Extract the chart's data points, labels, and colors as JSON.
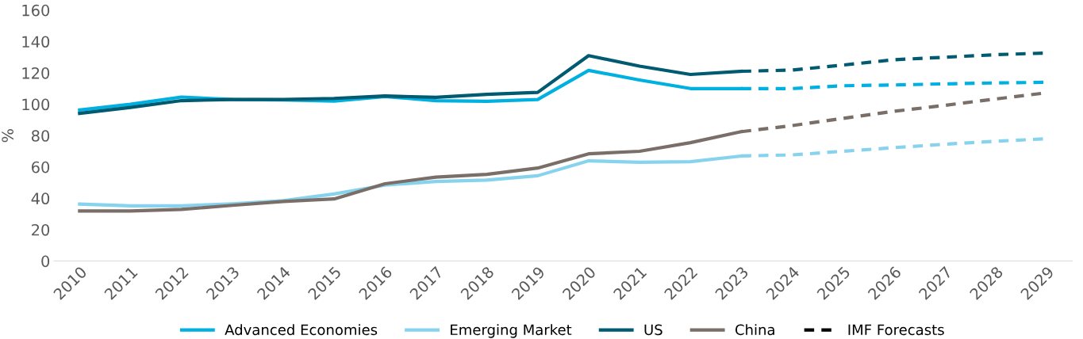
{
  "chart_data": {
    "type": "line",
    "ylabel": "%",
    "categories": [
      "2010",
      "2011",
      "2012",
      "2013",
      "2014",
      "2015",
      "2016",
      "2017",
      "2018",
      "2019",
      "2020",
      "2021",
      "2022",
      "2023",
      "2024",
      "2025",
      "2026",
      "2027",
      "2028",
      "2029"
    ],
    "ylim": [
      0,
      160
    ],
    "yticks": [
      0,
      20,
      40,
      60,
      80,
      100,
      120,
      140,
      160
    ],
    "legend": "bottom",
    "grid": false,
    "marker": "none",
    "series": [
      {
        "name": "Advanced Economies",
        "color": "#00b0e0",
        "line_style": "solid",
        "values": [
          96.3,
          100,
          104.6,
          103,
          102.8,
          102,
          104.9,
          102.3,
          101.9,
          103,
          121.6,
          115.5,
          110,
          110,
          null,
          null,
          null,
          null,
          null,
          null
        ]
      },
      {
        "name": "Emerging Market",
        "color": "#87d3ee",
        "line_style": "solid",
        "values": [
          36.3,
          35.2,
          35.2,
          36.5,
          38.5,
          42.8,
          48.4,
          50.7,
          51.6,
          54.4,
          63.9,
          63,
          63.4,
          67,
          null,
          null,
          null,
          null,
          null,
          null
        ]
      },
      {
        "name": "US",
        "color": "#005a70",
        "line_style": "solid",
        "values": [
          94.2,
          98,
          102.3,
          103,
          103,
          103.7,
          105.3,
          104.4,
          106.3,
          107.6,
          131,
          124.3,
          119,
          121,
          null,
          null,
          null,
          null,
          null,
          null
        ]
      },
      {
        "name": "China",
        "color": "#7a6e68",
        "line_style": "solid",
        "values": [
          31.9,
          31.9,
          32.9,
          35.5,
          38,
          39.6,
          49.3,
          53.5,
          55.3,
          59.3,
          68.4,
          70,
          75.5,
          82.5,
          null,
          null,
          null,
          null,
          null,
          null
        ]
      },
      {
        "color": "#00b0e0",
        "line_style": "dashed",
        "values": [
          null,
          null,
          null,
          null,
          null,
          null,
          null,
          null,
          null,
          null,
          null,
          null,
          null,
          110,
          110,
          111.8,
          112.3,
          113,
          113.6,
          114
        ]
      },
      {
        "color": "#87d3ee",
        "line_style": "dashed",
        "values": [
          null,
          null,
          null,
          null,
          null,
          null,
          null,
          null,
          null,
          null,
          null,
          null,
          null,
          67,
          67.7,
          70,
          72.3,
          74.5,
          76.4,
          78
        ]
      },
      {
        "color": "#005a70",
        "line_style": "dashed",
        "values": [
          null,
          null,
          null,
          null,
          null,
          null,
          null,
          null,
          null,
          null,
          null,
          null,
          null,
          121,
          121.8,
          125,
          128.4,
          130,
          131.6,
          132.7
        ]
      },
      {
        "color": "#7a6e68",
        "line_style": "dashed",
        "values": [
          null,
          null,
          null,
          null,
          null,
          null,
          null,
          null,
          null,
          null,
          null,
          null,
          null,
          82.5,
          86.4,
          91,
          95.5,
          99.3,
          103.4,
          107.3
        ]
      },
      {
        "name": "IMF Forecasts",
        "color": "#000000",
        "line_style": "dashed",
        "values": [
          null,
          null,
          null,
          null,
          null,
          null,
          null,
          null,
          null,
          null,
          null,
          null,
          null,
          null,
          null,
          null,
          null,
          null,
          null,
          null
        ]
      }
    ]
  }
}
